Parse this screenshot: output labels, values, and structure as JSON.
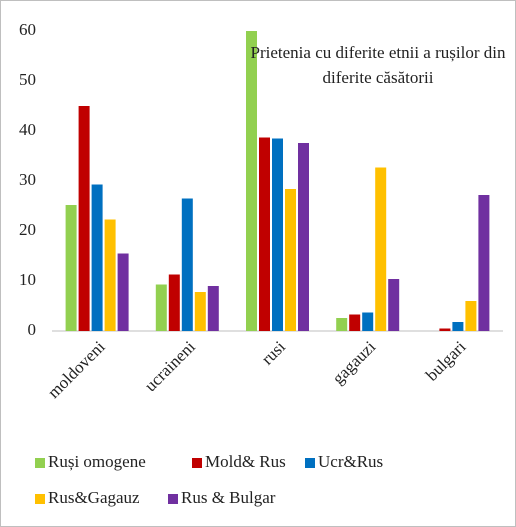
{
  "chart_data": {
    "type": "bar",
    "title": "Prietenia cu diferite etnii a rușilor din diferite căsătorii",
    "categories": [
      "moldoveni",
      "ucraineni",
      "rusi",
      "gagauzi",
      "bulgari"
    ],
    "series": [
      {
        "name": "Ruși omogene",
        "color": "#92d050",
        "values": [
          25.2,
          9.3,
          60,
          2.6,
          0
        ]
      },
      {
        "name": "Mold& Rus",
        "color": "#c00000",
        "values": [
          45,
          11.3,
          38.7,
          3.3,
          0.5
        ]
      },
      {
        "name": "Ucr&Rus",
        "color": "#0070c0",
        "values": [
          29.3,
          26.5,
          38.5,
          3.7,
          1.8
        ]
      },
      {
        "name": "Rus&Gagauz",
        "color": "#ffc000",
        "values": [
          22.3,
          7.8,
          28.4,
          32.7,
          6
        ]
      },
      {
        "name": "Rus & Bulgar",
        "color": "#7030a0",
        "values": [
          15.5,
          9,
          37.6,
          10.4,
          27.2
        ]
      }
    ],
    "ylim": [
      0,
      60
    ],
    "yticks": [
      0,
      10,
      20,
      30,
      40,
      50,
      60
    ],
    "grid": false,
    "legend": "bottom"
  }
}
